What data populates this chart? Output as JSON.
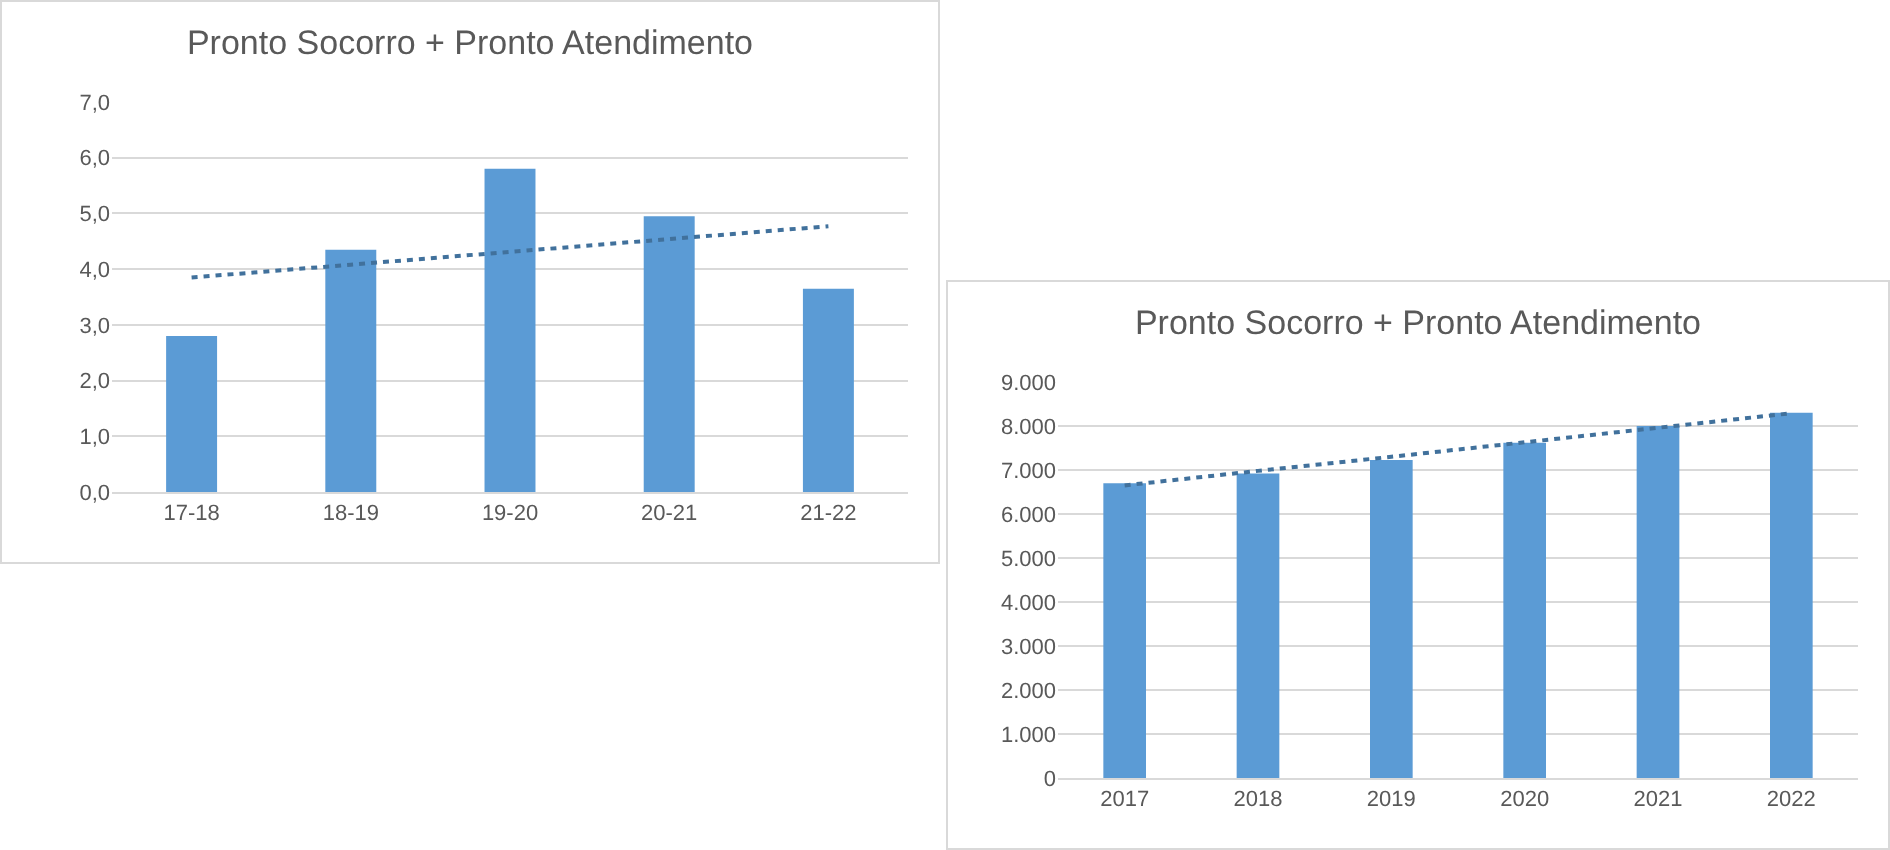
{
  "chart_data": [
    {
      "type": "bar",
      "title": "Pronto Socorro + Pronto Atendimento",
      "categories": [
        "17-18",
        "18-19",
        "19-20",
        "20-21",
        "21-22"
      ],
      "series": [
        {
          "color": "#5b9bd5",
          "values": [
            2.8,
            4.35,
            5.8,
            4.95,
            3.65
          ]
        },
        {
          "type": "line",
          "color": "#41719c",
          "line_style": "dotted",
          "marker": "none",
          "values": [
            3.85,
            4.08,
            4.31,
            4.54,
            4.77
          ]
        }
      ],
      "ylim": [
        0,
        7
      ],
      "yticks": [
        {
          "value": 0,
          "label": "0,0"
        },
        {
          "value": 1,
          "label": "1,0"
        },
        {
          "value": 2,
          "label": "2,0"
        },
        {
          "value": 3,
          "label": "3,0"
        },
        {
          "value": 4,
          "label": "4,0"
        },
        {
          "value": 5,
          "label": "5,0"
        },
        {
          "value": 6,
          "label": "6,0"
        },
        {
          "value": 7,
          "label": "7,0"
        }
      ],
      "grid": "y"
    },
    {
      "type": "bar",
      "title": "Pronto Socorro + Pronto Atendimento",
      "categories": [
        "2017",
        "2018",
        "2019",
        "2020",
        "2021",
        "2022"
      ],
      "series": [
        {
          "color": "#5b9bd5",
          "values": [
            6700,
            6920,
            7230,
            7620,
            8000,
            8300
          ]
        },
        {
          "type": "line",
          "color": "#41719c",
          "line_style": "dotted",
          "marker": "none",
          "values": [
            6650,
            6980,
            7300,
            7630,
            7960,
            8290
          ]
        }
      ],
      "ylim": [
        0,
        9000
      ],
      "yticks": [
        0,
        {
          "value": 1000,
          "label": "1.000"
        },
        {
          "value": 2000,
          "label": "2.000"
        },
        {
          "value": 3000,
          "label": "3.000"
        },
        {
          "value": 4000,
          "label": "4.000"
        },
        {
          "value": 5000,
          "label": "5.000"
        },
        {
          "value": 6000,
          "label": "6.000"
        },
        {
          "value": 7000,
          "label": "7.000"
        },
        {
          "value": 8000,
          "label": "8.000"
        },
        {
          "value": 9000,
          "label": "9.000"
        }
      ],
      "grid": "y"
    }
  ]
}
